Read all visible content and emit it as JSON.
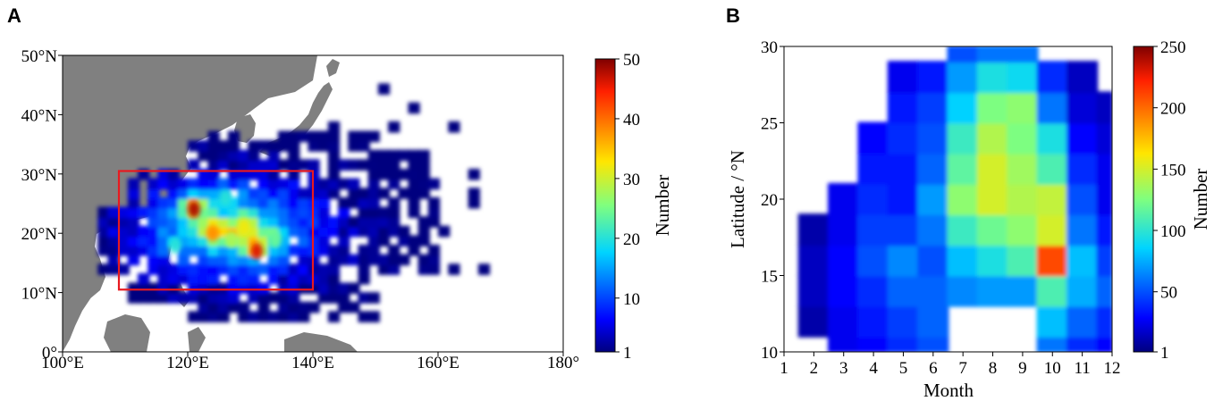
{
  "panels": {
    "a": {
      "label": "A",
      "chart_data": {
        "type": "heatmap",
        "subtype": "map-filled-contour",
        "x_ticks": [
          "100°E",
          "120°E",
          "140°E",
          "160°E",
          "180°"
        ],
        "y_ticks": [
          "0°",
          "10°N",
          "20°N",
          "30°N",
          "40°N",
          "50°N"
        ],
        "xlim": [
          100,
          180
        ],
        "ylim": [
          0,
          50
        ],
        "colorbar": {
          "label": "Number",
          "range": [
            1,
            50
          ],
          "ticks": [
            "1",
            "10",
            "20",
            "30",
            "40",
            "50"
          ],
          "colormap": "jet"
        },
        "highlight_box": {
          "lon": [
            109,
            140
          ],
          "lat": [
            10.5,
            30.5
          ],
          "color": "#e8191f"
        },
        "hotspots": [
          {
            "lon": 121,
            "lat": 24,
            "value": 48
          },
          {
            "lon": 131,
            "lat": 17,
            "value": 46
          },
          {
            "lon": 124,
            "lat": 20,
            "value": 38
          },
          {
            "lon": 129,
            "lat": 21,
            "value": 32
          },
          {
            "lon": 127,
            "lat": 19,
            "value": 28
          },
          {
            "lon": 134,
            "lat": 19,
            "value": 24
          },
          {
            "lon": 118,
            "lat": 18,
            "value": 20
          },
          {
            "lon": 126,
            "lat": 26,
            "value": 20
          }
        ]
      }
    },
    "b": {
      "label": "B",
      "chart_data": {
        "type": "heatmap",
        "subtype": "filled-contour",
        "xlabel": "Month",
        "ylabel": "Latitude / °N",
        "x": [
          1,
          2,
          3,
          4,
          5,
          6,
          7,
          8,
          9,
          10,
          11,
          12
        ],
        "y": [
          10,
          12,
          14,
          16,
          18,
          20,
          22,
          24,
          26,
          28,
          30
        ],
        "x_ticks": [
          "1",
          "2",
          "3",
          "4",
          "5",
          "6",
          "7",
          "8",
          "9",
          "10",
          "11",
          "12"
        ],
        "y_ticks": [
          "10",
          "15",
          "20",
          "25",
          "30"
        ],
        "xlim": [
          1,
          12
        ],
        "ylim": [
          10,
          30
        ],
        "values": [
          [
            0,
            0,
            25,
            30,
            40,
            50,
            0,
            0,
            0,
            60,
            40,
            30
          ],
          [
            0,
            10,
            25,
            35,
            45,
            55,
            0,
            0,
            0,
            80,
            55,
            40
          ],
          [
            0,
            15,
            30,
            40,
            55,
            55,
            65,
            70,
            70,
            110,
            75,
            55
          ],
          [
            0,
            15,
            30,
            50,
            65,
            50,
            80,
            95,
            110,
            210,
            80,
            45
          ],
          [
            0,
            10,
            25,
            45,
            45,
            60,
            105,
            120,
            130,
            150,
            60,
            35
          ],
          [
            0,
            0,
            25,
            40,
            35,
            70,
            130,
            150,
            140,
            145,
            50,
            25
          ],
          [
            0,
            0,
            0,
            35,
            35,
            55,
            115,
            150,
            135,
            110,
            40,
            25
          ],
          [
            0,
            0,
            0,
            30,
            40,
            50,
            105,
            140,
            125,
            95,
            30,
            20
          ],
          [
            0,
            0,
            0,
            0,
            35,
            45,
            85,
            125,
            130,
            60,
            20,
            15
          ],
          [
            0,
            0,
            0,
            0,
            25,
            35,
            70,
            95,
            90,
            40,
            15,
            0
          ],
          [
            0,
            0,
            0,
            0,
            0,
            0,
            50,
            60,
            60,
            0,
            0,
            0
          ]
        ],
        "colorbar": {
          "label": "Number",
          "range": [
            1,
            250
          ],
          "ticks": [
            "1",
            "50",
            "100",
            "150",
            "200",
            "250"
          ],
          "colormap": "jet"
        }
      }
    }
  }
}
